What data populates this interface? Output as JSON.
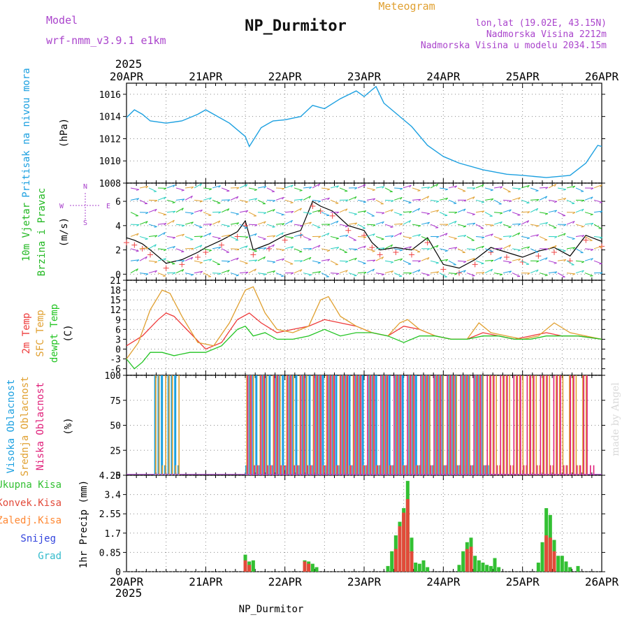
{
  "header": {
    "model_label": "Model",
    "model_name": "wrf-nmm_v3.9.1 e1km",
    "title": "NP_Durmitor",
    "subtitle": "Meteogram",
    "lonlat": "lon,lat (19.02E, 43.15N)",
    "elevation": "Nadmorska Visina 2212m",
    "model_elevation": "Nadmorska Visina u modelu 2034.15m",
    "year": "2025"
  },
  "footer": {
    "station": "NP_Durmitor",
    "year": "2025",
    "credit": "made by Angel"
  },
  "colors": {
    "pressure": "#1ca0e0",
    "temp2m": "#ee3a3a",
    "sfc": "#e0a030",
    "dewpt": "#22c422",
    "cloud_high": "#1ca0e0",
    "cloud_mid": "#e0a030",
    "cloud_low": "#e0207a",
    "precip_total": "#33c033",
    "precip_conv": "#e24a3a",
    "label_wind": "#22b822",
    "label_snow": "#3344dd",
    "label_grad": "#33bbcc",
    "label_frozen": "#ff8833",
    "legend_purple": "#aa44cc"
  },
  "chart_data": [
    {
      "type": "line",
      "x_ticks": [
        "20APR",
        "21APR",
        "22APR",
        "23APR",
        "24APR",
        "25APR",
        "26APR"
      ],
      "ylabel_main": "Pritisak na nivou mora",
      "ylabel_unit": "(hPa)",
      "ylim": [
        1008,
        1017
      ],
      "y_ticks": [
        1008,
        1010,
        1012,
        1014,
        1016
      ],
      "grid": true,
      "series": [
        {
          "x": [
            0,
            0.1,
            0.2,
            0.3,
            0.5,
            0.7,
            0.9,
            1.0,
            1.1,
            1.3,
            1.5,
            1.55,
            1.7,
            1.85,
            2.0,
            2.2,
            2.35,
            2.5,
            2.7,
            2.9,
            3.0,
            3.1,
            3.15,
            3.25,
            3.4,
            3.6,
            3.8,
            4.0,
            4.2,
            4.5,
            4.8,
            5.0,
            5.3,
            5.6,
            5.8,
            5.95,
            6.0
          ],
          "values": [
            1013.9,
            1014.6,
            1014.2,
            1013.6,
            1013.4,
            1013.6,
            1014.2,
            1014.6,
            1014.2,
            1013.4,
            1012.2,
            1011.3,
            1013.0,
            1013.6,
            1013.7,
            1014.0,
            1015.0,
            1014.7,
            1015.6,
            1016.3,
            1015.8,
            1016.4,
            1016.7,
            1015.2,
            1014.3,
            1013.1,
            1011.4,
            1010.4,
            1009.8,
            1009.2,
            1008.8,
            1008.7,
            1008.5,
            1008.7,
            1009.8,
            1011.4,
            1011.3
          ]
        }
      ]
    },
    {
      "type": "line",
      "ylabel_main": "10m Vjetar",
      "ylabel_sub": "Brzina i Pravac",
      "ylabel_unit": "(m/s)",
      "compass": {
        "n": "N",
        "s": "S",
        "w": "W",
        "e": "E"
      },
      "ylim": [
        -0.5,
        7.5
      ],
      "y_ticks": [
        0,
        2,
        4,
        6
      ],
      "grid": true,
      "series": [
        {
          "name": "speed",
          "x": [
            0,
            0.1,
            0.2,
            0.3,
            0.5,
            0.7,
            0.9,
            1.0,
            1.2,
            1.4,
            1.5,
            1.6,
            1.8,
            2.0,
            2.2,
            2.35,
            2.45,
            2.6,
            2.8,
            3.0,
            3.1,
            3.2,
            3.4,
            3.6,
            3.8,
            4.0,
            4.2,
            4.4,
            4.6,
            4.8,
            5.0,
            5.2,
            5.4,
            5.6,
            5.8,
            6.0
          ],
          "values": [
            3.0,
            2.8,
            2.5,
            2.0,
            0.9,
            1.2,
            1.8,
            2.2,
            2.8,
            3.5,
            4.4,
            2.0,
            2.5,
            3.2,
            3.6,
            6.0,
            5.6,
            5.2,
            4.0,
            3.6,
            2.6,
            2.0,
            2.2,
            2.0,
            3.0,
            0.8,
            0.5,
            1.2,
            2.2,
            1.8,
            1.4,
            1.9,
            2.2,
            1.5,
            3.2,
            2.7
          ]
        }
      ]
    },
    {
      "type": "line",
      "ylabel_main": "2m Temp",
      "ylabel_sub": "SFC Temp",
      "ylabel_third": "dewpt Temp",
      "ylabel_unit": "(C)",
      "ylim": [
        -8,
        21
      ],
      "y_ticks": [
        -6,
        -3,
        0,
        3,
        6,
        9,
        12,
        15,
        18,
        21
      ],
      "grid": true,
      "series": [
        {
          "name": "2m",
          "x": [
            0,
            0.2,
            0.4,
            0.5,
            0.6,
            0.8,
            1.0,
            1.2,
            1.4,
            1.55,
            1.7,
            1.9,
            2.1,
            2.3,
            2.5,
            2.7,
            2.9,
            3.1,
            3.3,
            3.5,
            3.7,
            3.9,
            4.1,
            4.3,
            4.5,
            4.7,
            4.9,
            5.1,
            5.3,
            5.5,
            5.7,
            6.0
          ],
          "values": [
            1,
            4,
            9,
            11,
            10,
            5,
            0,
            2,
            9,
            11,
            8,
            5,
            6,
            7,
            9,
            8,
            7,
            5,
            4,
            7,
            6,
            4,
            3,
            3,
            5,
            4,
            3,
            4,
            5,
            4,
            4,
            3
          ]
        },
        {
          "name": "sfc",
          "x": [
            0,
            0.15,
            0.3,
            0.45,
            0.55,
            0.7,
            0.9,
            1.1,
            1.3,
            1.5,
            1.6,
            1.75,
            1.9,
            2.1,
            2.3,
            2.45,
            2.55,
            2.7,
            2.9,
            3.1,
            3.3,
            3.45,
            3.55,
            3.7,
            3.9,
            4.1,
            4.3,
            4.45,
            4.6,
            4.8,
            5.0,
            5.2,
            5.4,
            5.6,
            5.8,
            6.0
          ],
          "values": [
            -3,
            2,
            12,
            18,
            17,
            10,
            2,
            1,
            8,
            18,
            19,
            11,
            6,
            5,
            7,
            15,
            16,
            10,
            7,
            5,
            4,
            8,
            9,
            6,
            4,
            3,
            3,
            8,
            5,
            4,
            3,
            4,
            8,
            5,
            4,
            3
          ]
        },
        {
          "name": "dewpt",
          "x": [
            0,
            0.1,
            0.2,
            0.3,
            0.45,
            0.6,
            0.8,
            1.0,
            1.2,
            1.4,
            1.5,
            1.6,
            1.75,
            1.9,
            2.1,
            2.3,
            2.5,
            2.7,
            2.9,
            3.1,
            3.3,
            3.5,
            3.7,
            3.9,
            4.1,
            4.3,
            4.5,
            4.7,
            4.9,
            5.1,
            5.3,
            5.5,
            5.7,
            6.0
          ],
          "values": [
            -3,
            -6,
            -4,
            -1,
            -1,
            -2,
            -1,
            -1,
            1,
            6,
            7,
            4,
            5,
            3,
            3,
            4,
            6,
            4,
            5,
            5,
            4,
            2,
            4,
            4,
            3,
            3,
            4,
            4,
            3,
            3,
            4,
            4,
            4,
            3
          ]
        }
      ]
    },
    {
      "type": "bar",
      "ylabel_main": "Visoka Oblacnost",
      "ylabel_sub": "Srednja Oblacnost",
      "ylabel_third": "Niska Oblacnost",
      "ylabel_unit": "(%)",
      "ylim": [
        0,
        100
      ],
      "y_ticks": [
        0,
        25,
        50,
        75,
        100
      ],
      "grid": true,
      "series": [
        {
          "name": "high",
          "x_range": [
            [
              0.35,
              0.65
            ],
            [
              1.5,
              4.6
            ],
            [
              5.3,
              6.0
            ]
          ],
          "values": [
            100,
            100,
            0
          ]
        },
        {
          "name": "mid",
          "x_range": [
            [
              0.35,
              0.65
            ],
            [
              1.5,
              5.8
            ]
          ],
          "values": [
            100,
            100
          ]
        },
        {
          "name": "low",
          "x_range": [
            [
              1.5,
              5.9
            ]
          ],
          "values": [
            100
          ]
        }
      ]
    },
    {
      "type": "bar",
      "ylabel_main": "1hr Precip (mm)",
      "legend": [
        "Ukupna Kisa",
        "Konvek.Kisa",
        "Zaledj.Kisa",
        "Snijeg",
        "Grad"
      ],
      "ylim": [
        0,
        4.25
      ],
      "y_ticks": [
        0,
        0.85,
        1.7,
        2.55,
        3.4,
        4.25
      ],
      "grid": true,
      "series": [
        {
          "name": "Ukupna Kisa",
          "x": [
            1.5,
            1.55,
            1.6,
            2.25,
            2.3,
            2.35,
            2.4,
            3.3,
            3.35,
            3.4,
            3.45,
            3.5,
            3.55,
            3.6,
            3.65,
            3.7,
            3.75,
            3.8,
            4.2,
            4.25,
            4.3,
            4.35,
            4.4,
            4.45,
            4.5,
            4.55,
            4.6,
            4.65,
            4.7,
            5.2,
            5.25,
            5.3,
            5.35,
            5.4,
            5.45,
            5.5,
            5.55,
            5.6,
            5.7
          ],
          "values": [
            0.75,
            0.45,
            0.5,
            0.5,
            0.45,
            0.35,
            0.2,
            0.25,
            0.9,
            1.6,
            2.2,
            2.8,
            4.0,
            1.5,
            0.4,
            0.35,
            0.5,
            0.2,
            0.3,
            0.9,
            1.3,
            1.5,
            0.7,
            0.5,
            0.4,
            0.3,
            0.25,
            0.6,
            0.2,
            0.4,
            1.3,
            2.8,
            2.5,
            1.4,
            0.7,
            0.7,
            0.45,
            0.2,
            0.25
          ]
        },
        {
          "name": "Konvek.Kisa",
          "x": [
            1.5,
            1.55,
            2.25,
            2.3,
            3.4,
            3.45,
            3.5,
            3.55,
            3.6,
            4.3,
            4.35,
            5.3,
            5.35,
            5.4
          ],
          "values": [
            0.5,
            0.3,
            0.45,
            0.35,
            1.0,
            2.0,
            2.6,
            3.2,
            0.9,
            1.0,
            1.1,
            1.6,
            1.5,
            0.9
          ]
        }
      ]
    }
  ]
}
